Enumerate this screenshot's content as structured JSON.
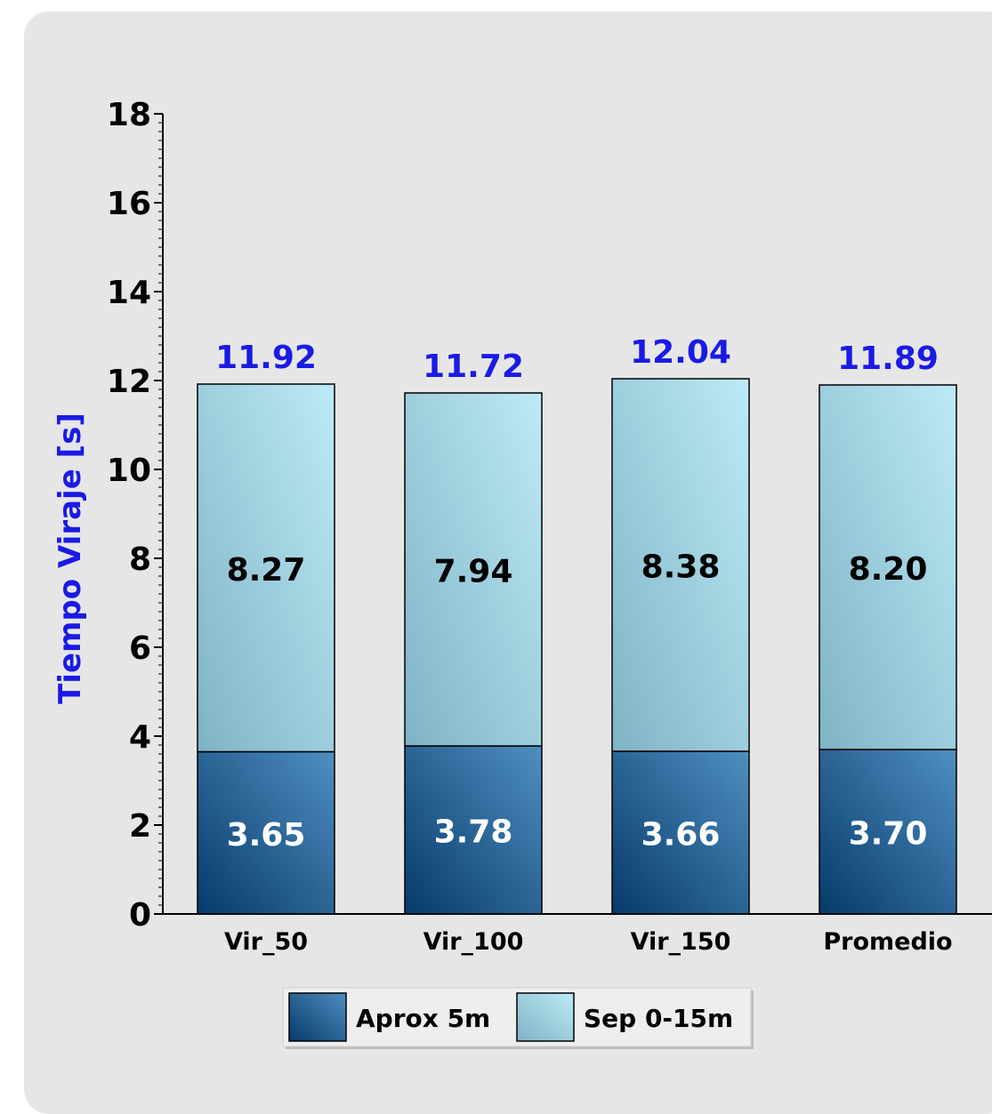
{
  "chart_data": {
    "type": "bar",
    "stacked": true,
    "categories": [
      "Vir_50",
      "Vir_100",
      "Vir_150",
      "Promedio"
    ],
    "series": [
      {
        "name": "Aprox 5m",
        "values": [
          3.65,
          3.78,
          3.66,
          3.7
        ],
        "color": "#1f5a8f",
        "label_color": "#ffffff"
      },
      {
        "name": "Sep 0-15m",
        "values": [
          8.27,
          7.94,
          8.38,
          8.2
        ],
        "color": "#a6d6e3",
        "label_color": "#000000"
      }
    ],
    "segment_labels": [
      [
        "3.65",
        "3.78",
        "3.66",
        "3.70"
      ],
      [
        "8.27",
        "7.94",
        "8.38",
        "8.20"
      ]
    ],
    "totals": [
      "11.92",
      "11.72",
      "12.04",
      "11.89"
    ],
    "total_color": "#1a1ae6",
    "ylabel": "Tiempo Viraje [s]",
    "xlabel": "",
    "title": "",
    "ylim": [
      0,
      18
    ],
    "yticks": [
      "0",
      "2",
      "4",
      "6",
      "8",
      "10",
      "12",
      "14",
      "16",
      "18"
    ],
    "grid": false,
    "legend_position": "bottom"
  }
}
